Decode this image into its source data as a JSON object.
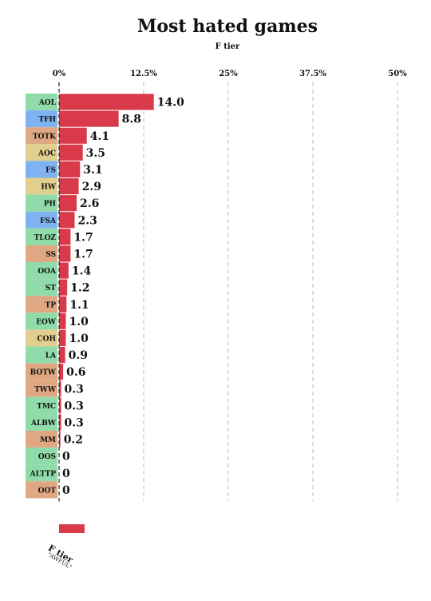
{
  "title": "Most hated games",
  "subtitle": "F tier",
  "colors": {
    "bar": "#d93a4a",
    "green": "#8fdcaa",
    "blue": "#7fb2f0",
    "orange": "#dfa882",
    "yellow": "#e0cf8e",
    "grid": "#bbbbbb"
  },
  "chart_data": {
    "type": "bar",
    "orientation": "horizontal",
    "title": "Most hated games",
    "subtitle": "F tier",
    "xlim": [
      0,
      50
    ],
    "xticks": [
      "0%",
      "12.5%",
      "25%",
      "37.5%",
      "50%"
    ],
    "xtick_values": [
      0,
      12.5,
      25,
      37.5,
      50
    ],
    "grid": "vertical dashed",
    "categories": [
      "AOL",
      "TFH",
      "TOTK",
      "AOC",
      "FS",
      "HW",
      "PH",
      "FSA",
      "TLOZ",
      "SS",
      "OOA",
      "ST",
      "TP",
      "EOW",
      "COH",
      "LA",
      "BOTW",
      "TWW",
      "TMC",
      "ALBW",
      "MM",
      "OOS",
      "ALTTP",
      "OOT"
    ],
    "label_colors": [
      "green",
      "blue",
      "orange",
      "yellow",
      "blue",
      "yellow",
      "green",
      "blue",
      "green",
      "orange",
      "green",
      "green",
      "orange",
      "green",
      "yellow",
      "green",
      "orange",
      "orange",
      "green",
      "green",
      "orange",
      "green",
      "green",
      "orange"
    ],
    "value_labels": [
      "14.0",
      "8.8",
      "4.1",
      "3.5",
      "3.1",
      "2.9",
      "2.6",
      "2.3",
      "1.7",
      "1.7",
      "1.4",
      "1.2",
      "1.1",
      "1.0",
      "1.0",
      "0.9",
      "0.6",
      "0.3",
      "0.3",
      "0.3",
      "0.2",
      "0",
      "0",
      "0"
    ],
    "series": [
      {
        "name": "F tier",
        "values": [
          14.0,
          8.8,
          4.1,
          3.5,
          3.1,
          2.9,
          2.6,
          2.3,
          1.7,
          1.7,
          1.4,
          1.2,
          1.1,
          1.0,
          1.0,
          0.9,
          0.6,
          0.3,
          0.3,
          0.3,
          0.2,
          0,
          0,
          0
        ]
      }
    ],
    "legend": {
      "position": "bottom-left",
      "label": "F tier",
      "sublabel": "\"AWFUL\""
    }
  }
}
